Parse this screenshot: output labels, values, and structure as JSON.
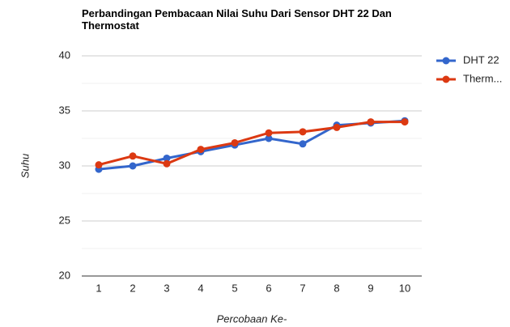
{
  "chart_data": {
    "type": "line",
    "title": "Perbandingan Pembacaan Nilai Suhu Dari Sensor DHT 22 Dan Thermostat",
    "x_label": "Percobaan Ke-",
    "y_label": "Suhu",
    "categories": [
      "1",
      "2",
      "3",
      "4",
      "5",
      "6",
      "7",
      "8",
      "9",
      "10"
    ],
    "series": [
      {
        "name": "DHT 22",
        "color": "#3366cc",
        "values": [
          29.7,
          30.0,
          30.7,
          31.3,
          31.9,
          32.5,
          32.0,
          33.7,
          33.9,
          34.1
        ]
      },
      {
        "name": "Therm...",
        "color": "#dc3912",
        "values": [
          30.1,
          30.9,
          30.2,
          31.5,
          32.1,
          33.0,
          33.1,
          33.5,
          34.0,
          34.0
        ]
      }
    ],
    "ylim": [
      20,
      40
    ],
    "yticks": [
      20,
      25,
      30,
      35,
      40
    ],
    "minor_yticks": [
      22.5,
      27.5,
      32.5,
      37.5
    ],
    "grid": true,
    "legend": "right"
  }
}
